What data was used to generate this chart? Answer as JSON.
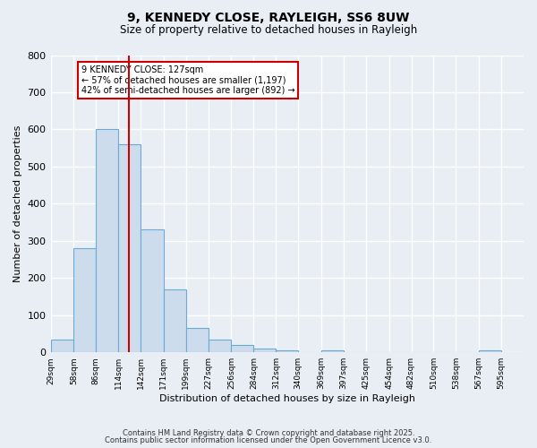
{
  "title": "9, KENNEDY CLOSE, RAYLEIGH, SS6 8UW",
  "subtitle": "Size of property relative to detached houses in Rayleigh",
  "xlabel": "Distribution of detached houses by size in Rayleigh",
  "ylabel": "Number of detached properties",
  "bar_left_edges": [
    29,
    58,
    86,
    114,
    142,
    171,
    199,
    227,
    256,
    284,
    312,
    340,
    369,
    397,
    425,
    454,
    482,
    510,
    538,
    567
  ],
  "bar_widths": [
    29,
    28,
    28,
    28,
    29,
    28,
    28,
    29,
    28,
    28,
    28,
    29,
    28,
    28,
    29,
    28,
    28,
    28,
    29,
    28
  ],
  "bar_heights": [
    35,
    280,
    600,
    560,
    330,
    170,
    65,
    35,
    20,
    10,
    5,
    0,
    5,
    0,
    0,
    0,
    0,
    0,
    0,
    5
  ],
  "bar_color": "#ccdcec",
  "bar_edgecolor": "#6aaad4",
  "vline_x": 127,
  "vline_color": "#cc0000",
  "ylim": [
    0,
    800
  ],
  "yticks": [
    0,
    100,
    200,
    300,
    400,
    500,
    600,
    700,
    800
  ],
  "xtick_labels": [
    "29sqm",
    "58sqm",
    "86sqm",
    "114sqm",
    "142sqm",
    "171sqm",
    "199sqm",
    "227sqm",
    "256sqm",
    "284sqm",
    "312sqm",
    "340sqm",
    "369sqm",
    "397sqm",
    "425sqm",
    "454sqm",
    "482sqm",
    "510sqm",
    "538sqm",
    "567sqm",
    "595sqm"
  ],
  "annotation_title": "9 KENNEDY CLOSE: 127sqm",
  "annotation_line1": "← 57% of detached houses are smaller (1,197)",
  "annotation_line2": "42% of semi-detached houses are larger (892) →",
  "bg_color": "#e8eef4",
  "plot_bg_color": "#e8eef4",
  "grid_color": "#ffffff",
  "footer_line1": "Contains HM Land Registry data © Crown copyright and database right 2025.",
  "footer_line2": "Contains public sector information licensed under the Open Government Licence v3.0."
}
